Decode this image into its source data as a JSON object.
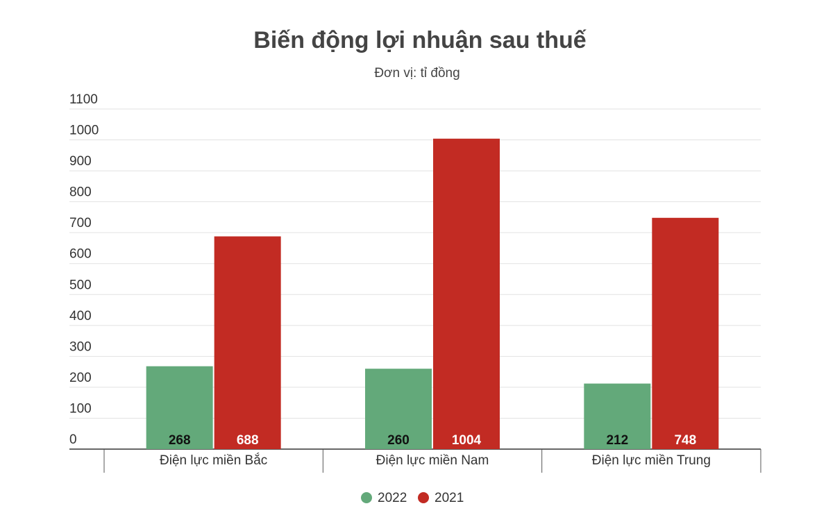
{
  "chart_data": {
    "type": "bar",
    "title": "Biến động lợi nhuận sau thuế",
    "subtitle": "Đơn vị: tỉ đồng",
    "categories": [
      "Điện lực miền Bắc",
      "Điện lực miền Nam",
      "Điện lực miền Trung"
    ],
    "series": [
      {
        "name": "2022",
        "color": "#63a97a",
        "label_color": "#111111",
        "values": [
          268,
          260,
          212
        ]
      },
      {
        "name": "2021",
        "color": "#c22b23",
        "label_color": "#ffffff",
        "values": [
          688,
          1004,
          748
        ]
      }
    ],
    "ylim": [
      0,
      1100
    ],
    "yticks": [
      0,
      100,
      200,
      300,
      400,
      500,
      600,
      700,
      800,
      900,
      1000,
      1100
    ],
    "grid": true
  }
}
